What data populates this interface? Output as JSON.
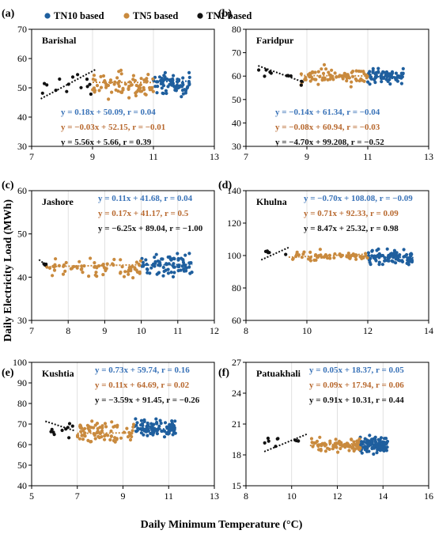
{
  "colors": {
    "TN10": "#1f5f9e",
    "TN5": "#c98a3e",
    "TN1": "#111111",
    "eq_TN10": "#3a73b8",
    "eq_TN5": "#b8692f",
    "eq_TN1": "#111111",
    "frame": "#000000"
  },
  "legend": {
    "items": [
      {
        "key": "TN10",
        "label": "TN10 based"
      },
      {
        "key": "TN5",
        "label": "TN5 based"
      },
      {
        "key": "TN1",
        "label": "TN1 based"
      }
    ]
  },
  "axes_titles": {
    "y": "Daily Electricity Load (MWh)",
    "x": "Daily Minimum Temperature (°C)"
  },
  "chart_data": [
    {
      "type": "scatter",
      "label": "(a)",
      "title": "Barishal",
      "xlim": [
        7,
        13
      ],
      "xticks": [
        7,
        9,
        11,
        13
      ],
      "ylim": [
        30,
        70
      ],
      "yticks": [
        30,
        40,
        50,
        60,
        70
      ],
      "series": [
        {
          "name": "TN10 based",
          "x_range": [
            11.0,
            12.2
          ],
          "y_mean": 51,
          "y_spread": 6,
          "n": 70,
          "fit": {
            "slope": 0.18,
            "intercept": 50.09
          }
        },
        {
          "name": "TN5 based",
          "x_range": [
            9.0,
            11.0
          ],
          "y_mean": 51,
          "y_spread": 7,
          "n": 80,
          "fit": {
            "slope": -0.03,
            "intercept": 52.15
          }
        },
        {
          "name": "TN1 based",
          "x_range": [
            7.3,
            9.1
          ],
          "y_mean": 52,
          "y_spread": 6,
          "n": 14,
          "fit": {
            "slope": 5.56,
            "intercept": 5.66
          }
        }
      ],
      "equations": [
        {
          "key": "TN10",
          "text": "y = 0.18x + 50.09, r = 0.04"
        },
        {
          "key": "TN5",
          "text": "y = −0.03x + 52.15, r = −0.01"
        },
        {
          "key": "TN1",
          "text": "y = 5.56x + 5.66, r = 0.39"
        }
      ]
    },
    {
      "type": "scatter",
      "label": "(b)",
      "title": "Faridpur",
      "xlim": [
        7,
        13
      ],
      "xticks": [
        7,
        9,
        11,
        13
      ],
      "ylim": [
        30,
        80
      ],
      "yticks": [
        30,
        40,
        50,
        60,
        70,
        80
      ],
      "series": [
        {
          "name": "TN10 based",
          "x_range": [
            11.0,
            12.2
          ],
          "y_mean": 60,
          "y_spread": 5,
          "n": 70,
          "fit": {
            "slope": -0.14,
            "intercept": 61.34
          }
        },
        {
          "name": "TN5 based",
          "x_range": [
            8.8,
            11.0
          ],
          "y_mean": 60,
          "y_spread": 6,
          "n": 80,
          "fit": {
            "slope": -0.08,
            "intercept": 60.94
          }
        },
        {
          "name": "TN1 based",
          "x_range": [
            7.4,
            8.9
          ],
          "y_mean": 60,
          "y_spread": 5,
          "n": 10,
          "fit": {
            "slope": -4.7,
            "intercept": 99.208
          }
        }
      ],
      "equations": [
        {
          "key": "TN10",
          "text": "y = −0.14x + 61.34, r = −0.04"
        },
        {
          "key": "TN5",
          "text": "y = −0.08x + 60.94, r = −0.03"
        },
        {
          "key": "TN1",
          "text": "y = −4.70x + 99.208, r = −0.52"
        }
      ]
    },
    {
      "type": "scatter",
      "label": "(c)",
      "title": "Jashore",
      "xlim": [
        7,
        12
      ],
      "xticks": [
        7,
        8,
        9,
        10,
        11,
        12
      ],
      "ylim": [
        30,
        60
      ],
      "yticks": [
        30,
        40,
        50,
        60
      ],
      "series": [
        {
          "name": "TN10 based",
          "x_range": [
            10.0,
            11.4
          ],
          "y_mean": 43,
          "y_spread": 4.5,
          "n": 80,
          "fit": {
            "slope": 0.11,
            "intercept": 41.68
          }
        },
        {
          "name": "TN5 based",
          "x_range": [
            7.4,
            10.0
          ],
          "y_mean": 42,
          "y_spread": 3.5,
          "n": 75,
          "fit": {
            "slope": 0.17,
            "intercept": 41.17
          }
        },
        {
          "name": "TN1 based",
          "x_range": [
            7.2,
            7.4
          ],
          "y_mean": 43,
          "y_spread": 0.6,
          "n": 3,
          "fit": {
            "slope": -6.25,
            "intercept": 89.04
          }
        }
      ],
      "equations": [
        {
          "key": "TN10",
          "text": "y = 0.11x + 41.68, r = 0.04"
        },
        {
          "key": "TN5",
          "text": "y = 0.17x + 41.17, r = 0.5"
        },
        {
          "key": "TN1",
          "text": "y = −6.25x + 89.04, r = −1.00"
        }
      ]
    },
    {
      "type": "scatter",
      "label": "(d)",
      "title": "Khulna",
      "xlim": [
        8,
        14
      ],
      "xticks": [
        8,
        10,
        12,
        14
      ],
      "ylim": [
        60,
        140
      ],
      "yticks": [
        60,
        80,
        100,
        120,
        140
      ],
      "series": [
        {
          "name": "TN10 based",
          "x_range": [
            12.0,
            13.5
          ],
          "y_mean": 98,
          "y_spread": 8,
          "n": 80,
          "fit": {
            "slope": -0.7,
            "intercept": 108.08
          }
        },
        {
          "name": "TN5 based",
          "x_range": [
            9.4,
            12.0
          ],
          "y_mean": 100,
          "y_spread": 5,
          "n": 60,
          "fit": {
            "slope": 0.71,
            "intercept": 92.33
          }
        },
        {
          "name": "TN1 based",
          "x_range": [
            8.5,
            9.4
          ],
          "y_mean": 101,
          "y_spread": 3,
          "n": 5,
          "fit": {
            "slope": 8.47,
            "intercept": 25.32
          }
        }
      ],
      "equations": [
        {
          "key": "TN10",
          "text": "y = −0.70x + 108.08, r = −0.09"
        },
        {
          "key": "TN5",
          "text": "y = 0.71x + 92.33, r = 0.09"
        },
        {
          "key": "TN1",
          "text": "y = 8.47x + 25.32, r = 0.98"
        }
      ]
    },
    {
      "type": "scatter",
      "label": "(e)",
      "title": "Kushtia",
      "xlim": [
        5,
        13
      ],
      "xticks": [
        5,
        7,
        9,
        11,
        13
      ],
      "ylim": [
        40,
        100
      ],
      "yticks": [
        40,
        50,
        60,
        70,
        80,
        90,
        100
      ],
      "series": [
        {
          "name": "TN10 based",
          "x_range": [
            9.5,
            11.3
          ],
          "y_mean": 68,
          "y_spread": 6,
          "n": 100,
          "fit": {
            "slope": 0.73,
            "intercept": 59.74
          }
        },
        {
          "name": "TN5 based",
          "x_range": [
            7.0,
            9.5
          ],
          "y_mean": 66,
          "y_spread": 8,
          "n": 80,
          "fit": {
            "slope": 0.11,
            "intercept": 64.69
          }
        },
        {
          "name": "TN1 based",
          "x_range": [
            5.6,
            6.9
          ],
          "y_mean": 67,
          "y_spread": 6,
          "n": 10,
          "fit": {
            "slope": -3.59,
            "intercept": 91.45
          }
        }
      ],
      "equations": [
        {
          "key": "TN10",
          "text": "y = 0.73x + 59.74, r = 0.16"
        },
        {
          "key": "TN5",
          "text": "y = 0.11x + 64.69, r = 0.02"
        },
        {
          "key": "TN1",
          "text": "y = −3.59x + 91.45, r = −0.26"
        }
      ]
    },
    {
      "type": "scatter",
      "label": "(f)",
      "title": "Patuakhali",
      "xlim": [
        8,
        16
      ],
      "xticks": [
        8,
        10,
        12,
        14,
        16
      ],
      "ylim": [
        15,
        27
      ],
      "yticks": [
        15,
        18,
        21,
        24,
        27
      ],
      "series": [
        {
          "name": "TN10 based",
          "x_range": [
            13.0,
            14.2
          ],
          "y_mean": 19,
          "y_spread": 1.3,
          "n": 110,
          "fit": {
            "slope": 0.05,
            "intercept": 18.37
          }
        },
        {
          "name": "TN5 based",
          "x_range": [
            10.8,
            13.0
          ],
          "y_mean": 19,
          "y_spread": 1.2,
          "n": 80,
          "fit": {
            "slope": 0.09,
            "intercept": 17.94
          }
        },
        {
          "name": "TN1 based",
          "x_range": [
            8.8,
            10.7
          ],
          "y_mean": 19.3,
          "y_spread": 1.0,
          "n": 10,
          "fit": {
            "slope": 0.91,
            "intercept": 10.31
          }
        }
      ],
      "equations": [
        {
          "key": "TN10",
          "text": "y = 0.05x + 18.37, r = 0.05"
        },
        {
          "key": "TN5",
          "text": "y = 0.09x + 17.94, r = 0.06"
        },
        {
          "key": "TN1",
          "text": "y = 0.91x + 10.31, r = 0.44"
        }
      ]
    }
  ]
}
